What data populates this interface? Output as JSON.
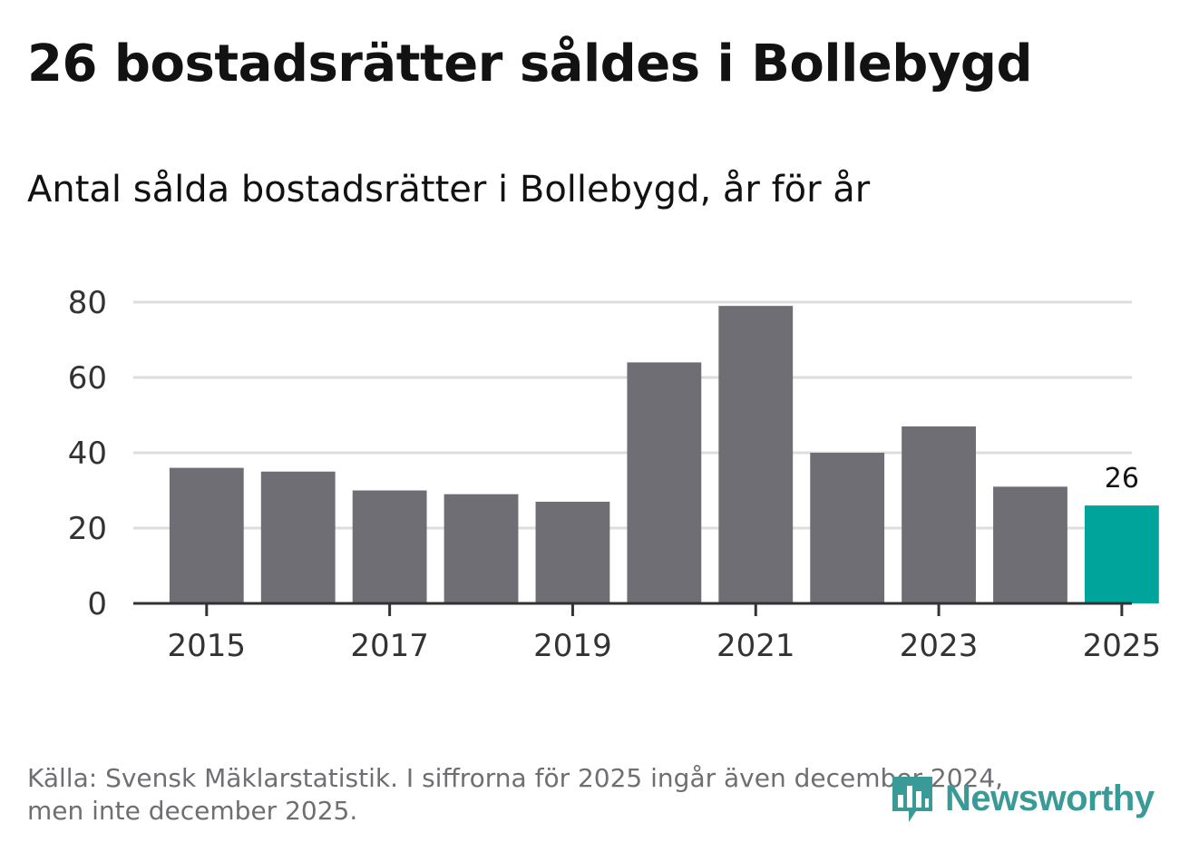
{
  "title": "26 bostadsrätter såldes i Bollebygd",
  "subtitle": "Antal sålda bostadsrätter i Bollebygd, år för år",
  "source": {
    "line1": "Källa: Svensk Mäklarstatistik. I siffrorna för 2025 ingår även december 2024,",
    "line2": "men inte december 2025."
  },
  "logo": {
    "text": "Newsworthy",
    "icon": "newsworthy-bar-chart-icon"
  },
  "colors": {
    "bar": "#6f6e74",
    "highlight": "#00a49a",
    "grid": "#dddddd",
    "axis": "#333333",
    "logo": "#3a9a97"
  },
  "chart_data": {
    "type": "bar",
    "title": "Antal sålda bostadsrätter i Bollebygd, år för år",
    "xlabel": "",
    "ylabel": "",
    "categories": [
      "2015",
      "2016",
      "2017",
      "2018",
      "2019",
      "2020",
      "2021",
      "2022",
      "2023",
      "2024",
      "2025"
    ],
    "values": [
      36,
      35,
      30,
      29,
      27,
      64,
      79,
      40,
      47,
      31,
      26
    ],
    "x_tick_labels": [
      "2015",
      "2017",
      "2019",
      "2021",
      "2023",
      "2025"
    ],
    "y_ticks": [
      0,
      20,
      40,
      60,
      80
    ],
    "ylim": [
      0,
      80
    ],
    "highlight_category": "2025",
    "data_labels": [
      {
        "category": "2025",
        "label": "26"
      }
    ],
    "grid": true
  }
}
